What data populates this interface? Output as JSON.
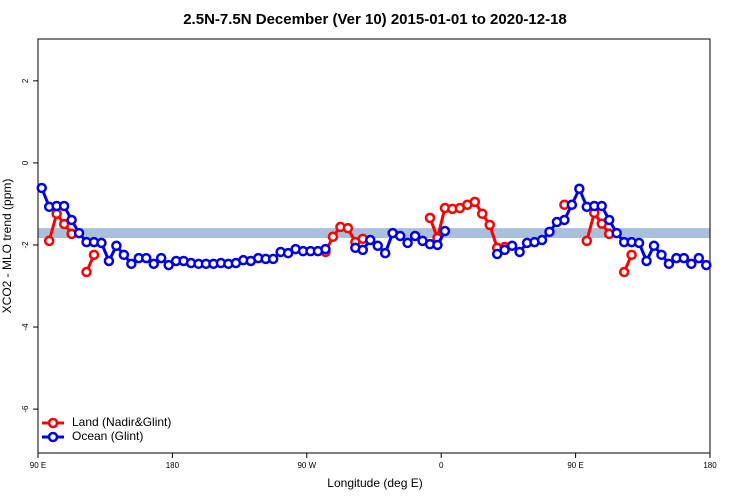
{
  "chart_data": {
    "type": "line",
    "title": "2.5N-7.5N December (Ver 10)   2015-01-01 to 2020-12-18",
    "xlabel": "Longitude (deg E)",
    "ylabel": "XCO2 - MLO trend (ppm)",
    "xlim": [
      90,
      540
    ],
    "xticks": [
      {
        "value": 90,
        "label": "90 E"
      },
      180,
      {
        "value": 270,
        "label": "90 W"
      },
      {
        "value": 360,
        "label": "0"
      },
      {
        "value": 450,
        "label": "90 E"
      },
      {
        "value": 540,
        "label": "180"
      }
    ],
    "ylim": [
      -7.07,
      3.02
    ],
    "yticks": [
      -6,
      -4,
      -2,
      0,
      2
    ],
    "band": {
      "range": [
        -1.83,
        -1.59
      ],
      "color": "#a9bfdc"
    },
    "legend": "bottom-left",
    "x": [
      92.5,
      97.5,
      102.5,
      107.5,
      112.5,
      117.5,
      122.5,
      127.5,
      132.5,
      137.5,
      142.5,
      147.5,
      152.5,
      157.5,
      162.5,
      167.5,
      172.5,
      177.5,
      182.5,
      187.5,
      192.5,
      197.5,
      202.5,
      207.5,
      212.5,
      217.5,
      222.5,
      227.5,
      232.5,
      237.5,
      242.5,
      247.5,
      252.5,
      257.5,
      262.5,
      267.5,
      272.5,
      277.5,
      282.5,
      287.5,
      292.5,
      297.5,
      302.5,
      307.5,
      312.5,
      317.5,
      322.5,
      327.5,
      332.5,
      337.5,
      342.5,
      347.5,
      352.5,
      357.5,
      362.5,
      367.5,
      372.5,
      377.5,
      382.5,
      387.5,
      392.5,
      397.5,
      402.5,
      407.5,
      412.5,
      417.5,
      422.5,
      427.5,
      432.5,
      437.5,
      442.5,
      447.5,
      452.5,
      457.5,
      462.5,
      467.5,
      472.5,
      477.5,
      482.5,
      487.5,
      492.5,
      497.5,
      502.5,
      507.5,
      512.5,
      517.5,
      522.5,
      527.5,
      532.5,
      537.5
    ],
    "series": [
      {
        "name": "Land (Nadir&Glint)",
        "color": "#ff0000",
        "values": [
          null,
          -1.9,
          -1.24,
          -1.49,
          -1.73,
          null,
          -2.66,
          -2.24,
          null,
          null,
          null,
          null,
          null,
          null,
          null,
          null,
          null,
          null,
          null,
          null,
          null,
          null,
          null,
          null,
          null,
          null,
          null,
          null,
          null,
          null,
          null,
          null,
          null,
          null,
          null,
          null,
          null,
          null,
          -2.17,
          -1.8,
          -1.56,
          -1.59,
          -1.93,
          -1.85,
          null,
          null,
          null,
          null,
          null,
          null,
          null,
          null,
          -1.34,
          -1.83,
          -1.1,
          -1.12,
          -1.1,
          -1.02,
          -0.95,
          -1.24,
          -1.51,
          -2.07,
          -2.05,
          null,
          null,
          null,
          null,
          null,
          null,
          null,
          -1.02,
          null,
          null,
          -1.9,
          -1.22,
          -1.48,
          -1.73,
          null,
          -2.66,
          -2.24,
          null,
          null,
          null,
          null,
          null,
          null,
          null,
          null,
          null,
          null
        ]
      },
      {
        "name": "Ocean (Glint)",
        "color": "#0000ee",
        "values": [
          -0.61,
          -1.07,
          -1.05,
          -1.05,
          -1.39,
          -1.71,
          -1.93,
          -1.93,
          -1.95,
          -2.39,
          -2.02,
          -2.24,
          -2.46,
          -2.32,
          -2.32,
          -2.46,
          -2.32,
          -2.49,
          -2.39,
          -2.39,
          -2.44,
          -2.46,
          -2.46,
          -2.46,
          -2.44,
          -2.46,
          -2.44,
          -2.37,
          -2.39,
          -2.32,
          -2.34,
          -2.34,
          -2.17,
          -2.2,
          -2.1,
          -2.15,
          -2.15,
          -2.15,
          -2.1,
          null,
          null,
          null,
          -2.07,
          -2.12,
          -1.88,
          -2.02,
          -2.2,
          -1.71,
          -1.78,
          -1.95,
          -1.78,
          -1.9,
          -1.98,
          -2.0,
          -1.66,
          null,
          null,
          null,
          null,
          null,
          null,
          -2.22,
          -2.12,
          -2.02,
          -2.17,
          -1.95,
          -1.93,
          -1.88,
          -1.68,
          -1.44,
          -1.39,
          -1.02,
          -0.63,
          -1.07,
          -1.05,
          -1.05,
          -1.39,
          -1.71,
          -1.93,
          -1.93,
          -1.95,
          -2.39,
          -2.02,
          -2.24,
          -2.46,
          -2.32,
          -2.32,
          -2.46,
          -2.32,
          -2.49
        ]
      }
    ]
  }
}
